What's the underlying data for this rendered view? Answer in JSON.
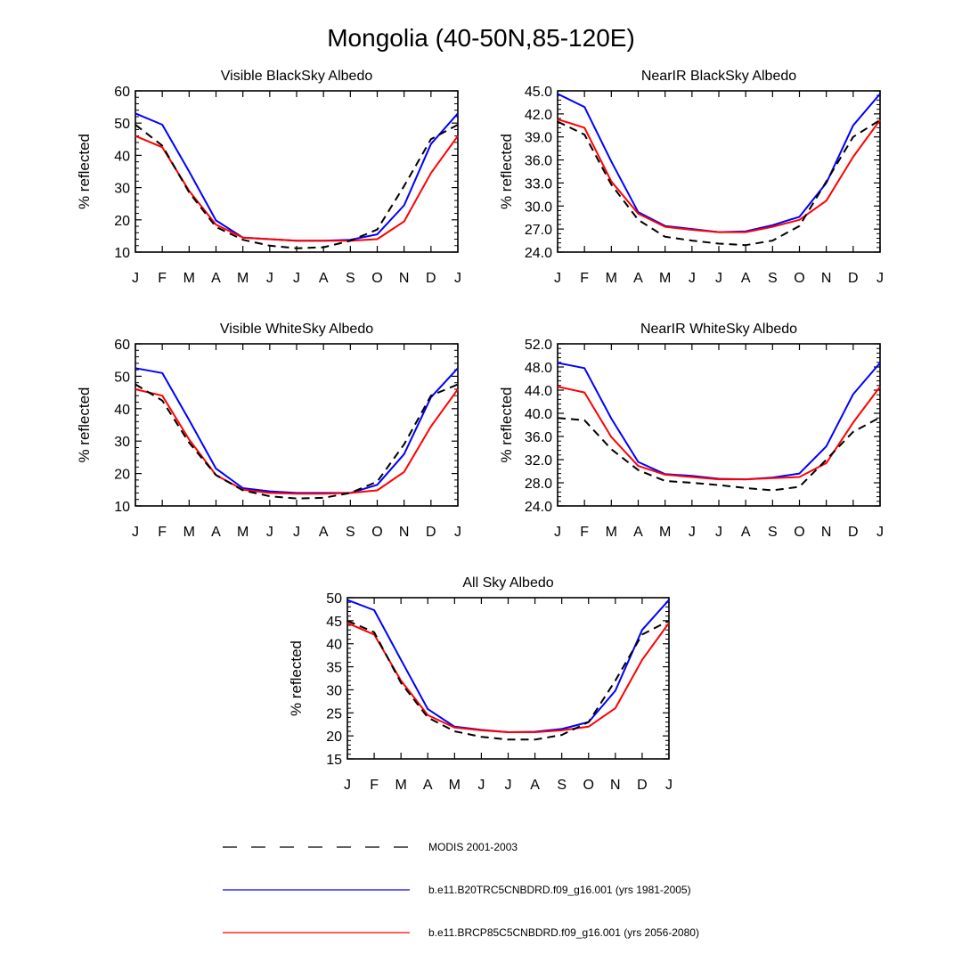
{
  "figure_title": "Mongolia (40-50N,85-120E)",
  "legend": [
    {
      "name": "MODIS 2001-2003",
      "color": "#000000",
      "dash": true
    },
    {
      "name": "b.e11.B20TRC5CNBDRD.f09_g16.001 (yrs 1981-2005)",
      "color": "#0000ff",
      "dash": false
    },
    {
      "name": "b.e11.BRCP85C5CNBDRD.f09_g16.001 (yrs 2056-2080)",
      "color": "#ff0000",
      "dash": false
    }
  ],
  "chart_data": [
    {
      "type": "line",
      "title": "Visible BlackSky Albedo",
      "ylabel": "% reflected",
      "x": [
        "J",
        "F",
        "M",
        "A",
        "M",
        "J",
        "J",
        "A",
        "S",
        "O",
        "N",
        "D",
        "J"
      ],
      "ylim": [
        10,
        60
      ],
      "yticks": [
        "10",
        "20",
        "30",
        "40",
        "50",
        "60"
      ],
      "series": [
        {
          "name": "MODIS 2001-2003",
          "values": [
            49.5,
            43.0,
            28.5,
            17.8,
            13.8,
            12.0,
            11.2,
            11.5,
            13.5,
            17.0,
            30.5,
            45.0,
            49.5
          ]
        },
        {
          "name": "b.e11.B20TRC5CNBDRD.f09_g16.001 (yrs 1981-2005)",
          "values": [
            53.0,
            49.5,
            35.0,
            19.8,
            14.5,
            14.0,
            13.5,
            13.5,
            13.8,
            15.5,
            24.5,
            43.5,
            53.0
          ]
        },
        {
          "name": "b.e11.BRCP85C5CNBDRD.f09_g16.001 (yrs 2056-2080)",
          "values": [
            46.0,
            42.5,
            29.0,
            18.5,
            14.5,
            14.0,
            13.5,
            13.5,
            13.5,
            14.0,
            19.5,
            34.5,
            46.0
          ]
        }
      ]
    },
    {
      "type": "line",
      "title": "NearIR BlackSky Albedo",
      "ylabel": "% reflected",
      "x": [
        "J",
        "F",
        "M",
        "A",
        "M",
        "J",
        "J",
        "A",
        "S",
        "O",
        "N",
        "D",
        "J"
      ],
      "ylim": [
        24,
        45
      ],
      "yticks": [
        "24.0",
        "27.0",
        "30.0",
        "33.0",
        "36.0",
        "39.0",
        "42.0",
        "45.0"
      ],
      "series": [
        {
          "name": "MODIS 2001-2003",
          "values": [
            41.0,
            39.3,
            32.8,
            28.2,
            26.0,
            25.5,
            25.1,
            24.9,
            25.5,
            27.4,
            33.2,
            39.0,
            41.2
          ]
        },
        {
          "name": "b.e11.B20TRC5CNBDRD.f09_g16.001 (yrs 1981-2005)",
          "values": [
            44.6,
            42.9,
            35.8,
            29.2,
            27.4,
            27.0,
            26.6,
            26.7,
            27.5,
            28.6,
            33.0,
            40.5,
            44.6
          ]
        },
        {
          "name": "b.e11.BRCP85C5CNBDRD.f09_g16.001 (yrs 2056-2080)",
          "values": [
            41.3,
            40.2,
            33.2,
            29.0,
            27.3,
            26.9,
            26.6,
            26.6,
            27.3,
            28.2,
            30.7,
            36.4,
            41.2
          ]
        }
      ]
    },
    {
      "type": "line",
      "title": "Visible WhiteSky Albedo",
      "ylabel": "% reflected",
      "x": [
        "J",
        "F",
        "M",
        "A",
        "M",
        "J",
        "J",
        "A",
        "S",
        "O",
        "N",
        "D",
        "J"
      ],
      "ylim": [
        10,
        60
      ],
      "yticks": [
        "10",
        "20",
        "30",
        "40",
        "50",
        "60"
      ],
      "series": [
        {
          "name": "MODIS 2001-2003",
          "values": [
            47.5,
            42.5,
            29.5,
            19.5,
            14.8,
            13.0,
            12.3,
            12.5,
            14.0,
            17.5,
            29.0,
            44.0,
            47.5
          ]
        },
        {
          "name": "b.e11.B20TRC5CNBDRD.f09_g16.001 (yrs 1981-2005)",
          "values": [
            52.5,
            51.0,
            36.5,
            21.5,
            15.5,
            14.5,
            14.0,
            14.0,
            14.0,
            16.5,
            26.0,
            43.5,
            52.5
          ]
        },
        {
          "name": "b.e11.BRCP85C5CNBDRD.f09_g16.001 (yrs 2056-2080)",
          "values": [
            46.0,
            44.0,
            30.5,
            19.5,
            15.0,
            14.0,
            13.8,
            13.8,
            14.0,
            14.8,
            20.5,
            34.5,
            46.0
          ]
        }
      ]
    },
    {
      "type": "line",
      "title": "NearIR WhiteSky Albedo",
      "ylabel": "% reflected",
      "x": [
        "J",
        "F",
        "M",
        "A",
        "M",
        "J",
        "J",
        "A",
        "S",
        "O",
        "N",
        "D",
        "J"
      ],
      "ylim": [
        24,
        52
      ],
      "yticks": [
        "24.0",
        "28.0",
        "32.0",
        "36.0",
        "40.0",
        "44.0",
        "48.0",
        "52.0"
      ],
      "series": [
        {
          "name": "MODIS 2001-2003",
          "values": [
            39.2,
            38.8,
            33.8,
            30.2,
            28.3,
            28.0,
            27.6,
            27.1,
            26.7,
            27.3,
            32.0,
            36.8,
            39.3
          ]
        },
        {
          "name": "b.e11.B20TRC5CNBDRD.f09_g16.001 (yrs 1981-2005)",
          "values": [
            48.7,
            47.8,
            39.1,
            31.6,
            29.5,
            29.2,
            28.7,
            28.6,
            28.9,
            29.6,
            34.3,
            43.3,
            48.7
          ]
        },
        {
          "name": "b.e11.BRCP85C5CNBDRD.f09_g16.001 (yrs 2056-2080)",
          "values": [
            44.6,
            43.6,
            35.9,
            30.9,
            29.4,
            29.0,
            28.6,
            28.6,
            28.8,
            29.0,
            31.4,
            38.4,
            44.6
          ]
        }
      ]
    },
    {
      "type": "line",
      "title": "All Sky Albedo",
      "ylabel": "% reflected",
      "x": [
        "J",
        "F",
        "M",
        "A",
        "M",
        "J",
        "J",
        "A",
        "S",
        "O",
        "N",
        "D",
        "J"
      ],
      "ylim": [
        15,
        50
      ],
      "yticks": [
        "15",
        "20",
        "25",
        "30",
        "35",
        "40",
        "45",
        "50"
      ],
      "series": [
        {
          "name": "MODIS 2001-2003",
          "values": [
            45.0,
            42.5,
            31.5,
            24.0,
            21.0,
            19.8,
            19.2,
            19.2,
            20.2,
            23.0,
            32.0,
            42.0,
            45.0
          ]
        },
        {
          "name": "b.e11.B20TRC5CNBDRD.f09_g16.001 (yrs 1981-2005)",
          "values": [
            49.5,
            47.3,
            36.5,
            25.8,
            22.0,
            21.3,
            20.8,
            20.9,
            21.5,
            23.0,
            29.8,
            43.0,
            49.5
          ]
        },
        {
          "name": "b.e11.BRCP85C5CNBDRD.f09_g16.001 (yrs 2056-2080)",
          "values": [
            44.5,
            42.0,
            32.0,
            24.5,
            21.8,
            21.2,
            20.8,
            20.8,
            21.2,
            22.0,
            26.0,
            36.5,
            44.5
          ]
        }
      ]
    }
  ]
}
